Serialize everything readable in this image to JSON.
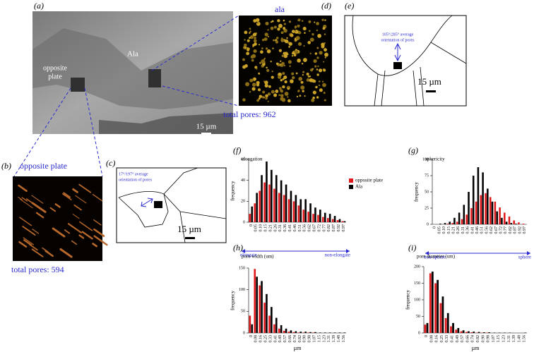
{
  "panels": {
    "a": {
      "label": "(a)",
      "ala": "Ala",
      "opposite": [
        "opposite",
        "plate"
      ],
      "scale": "15 µm"
    },
    "b": {
      "label": "(b)",
      "title": "opposite plate",
      "total": "total pores: 594"
    },
    "c": {
      "label": "(c)",
      "orientation": [
        "17°/197°  average",
        "orientation of pores"
      ],
      "scale": "15 µm"
    },
    "d": {
      "label": "(d)",
      "title": "ala",
      "total": "total pores: 962"
    },
    "e": {
      "label": "(e)",
      "orientation": [
        "105°/285°  average",
        "orientation of pores"
      ],
      "scale": "15 µm"
    }
  },
  "chart_data": [
    {
      "type": "bar",
      "label": "(f)",
      "title": "elongation",
      "ylabel": "frequency",
      "arrow_left": "elongate",
      "arrow_right": "non-elongate",
      "categories": [
        "0",
        "0.05",
        "0.10",
        "0.15",
        "0.21",
        "0.26",
        "0.31",
        "0.36",
        "0.41",
        "0.46",
        "0.51",
        "0.56",
        "0.62",
        "0.67",
        "0.72",
        "0.77",
        "0.82",
        "0.87",
        "0.92",
        "0.97"
      ],
      "series": [
        {
          "name": "opposite plate",
          "color": "#e0191c",
          "values": [
            8,
            18,
            30,
            38,
            36,
            32,
            28,
            26,
            22,
            20,
            16,
            12,
            10,
            8,
            7,
            5,
            4,
            3,
            2,
            1
          ]
        },
        {
          "name": "Ala",
          "color": "#000000",
          "values": [
            15,
            28,
            45,
            58,
            50,
            45,
            40,
            36,
            30,
            26,
            22,
            22,
            18,
            14,
            12,
            9,
            8,
            6,
            3,
            1
          ]
        }
      ],
      "ylim": [
        0,
        60
      ],
      "yticks": [
        0,
        20,
        40,
        60
      ],
      "legend": "top-right"
    },
    {
      "type": "bar",
      "label": "(g)",
      "title": "sphericity",
      "ylabel": "frequency",
      "arrow_left": "non-sphere",
      "arrow_right": "sphere",
      "categories": [
        "0",
        "0.05",
        "0.10",
        "0.15",
        "0.21",
        "0.26",
        "0.31",
        "0.36",
        "0.41",
        "0.46",
        "0.51",
        "0.56",
        "0.62",
        "0.67",
        "0.72",
        "0.77",
        "0.82",
        "0.87",
        "0.92",
        "0.97"
      ],
      "series": [
        {
          "name": "opposite plate",
          "color": "#e0191c",
          "values": [
            0,
            0,
            0,
            1,
            2,
            4,
            8,
            15,
            25,
            35,
            45,
            48,
            42,
            35,
            26,
            18,
            12,
            6,
            3,
            1
          ]
        },
        {
          "name": "Ala",
          "color": "#000000",
          "values": [
            0,
            1,
            2,
            4,
            10,
            18,
            30,
            50,
            75,
            88,
            80,
            55,
            35,
            20,
            10,
            4,
            2,
            1,
            0,
            0
          ]
        }
      ],
      "ylim": [
        0,
        100
      ],
      "yticks": [
        0,
        25,
        50,
        75,
        100
      ]
    },
    {
      "type": "bar",
      "label": "(h)",
      "title": "pore width (um)",
      "ylabel": "frequency",
      "xlabel": "µm",
      "categories": [
        "0",
        "0.08",
        "0.16",
        "0.25",
        "0.33",
        "0.41",
        "0.49",
        "0.57",
        "0.66",
        "0.74",
        "0.82",
        "0.90",
        "0.98",
        "1.07",
        "1.15",
        "1.23",
        "1.31",
        "1.39",
        "1.48",
        "1.56"
      ],
      "series": [
        {
          "name": "opposite plate",
          "color": "#e0191c",
          "values": [
            40,
            148,
            110,
            70,
            40,
            20,
            10,
            5,
            3,
            2,
            1,
            1,
            1,
            1,
            0,
            0,
            0,
            0,
            0,
            0
          ]
        },
        {
          "name": "Ala",
          "color": "#000000",
          "values": [
            20,
            130,
            120,
            90,
            60,
            35,
            18,
            10,
            6,
            4,
            3,
            3,
            2,
            2,
            1,
            1,
            1,
            1,
            1,
            1
          ]
        }
      ],
      "ylim": [
        0,
        150
      ],
      "yticks": [
        0,
        50,
        100,
        150
      ]
    },
    {
      "type": "bar",
      "label": "(i)",
      "title": "pore diameter (um)",
      "ylabel": "frequency",
      "xlabel": "µm",
      "categories": [
        "0",
        "0.08",
        "0.16",
        "0.25",
        "0.33",
        "0.41",
        "0.49",
        "0.57",
        "0.66",
        "0.74",
        "0.82",
        "0.90",
        "0.98",
        "1.07",
        "1.15",
        "1.23",
        "1.31",
        "1.39",
        "1.48",
        "1.56"
      ],
      "series": [
        {
          "name": "opposite plate",
          "color": "#e0191c",
          "values": [
            25,
            180,
            150,
            90,
            45,
            20,
            10,
            5,
            3,
            2,
            1,
            1,
            1,
            0,
            0,
            0,
            0,
            0,
            0,
            0
          ]
        },
        {
          "name": "Ala",
          "color": "#000000",
          "values": [
            30,
            185,
            160,
            110,
            60,
            30,
            15,
            8,
            5,
            4,
            3,
            2,
            2,
            1,
            1,
            1,
            1,
            0,
            0,
            1
          ]
        }
      ],
      "ylim": [
        0,
        200
      ],
      "yticks": [
        0,
        50,
        100,
        150,
        200
      ]
    }
  ]
}
